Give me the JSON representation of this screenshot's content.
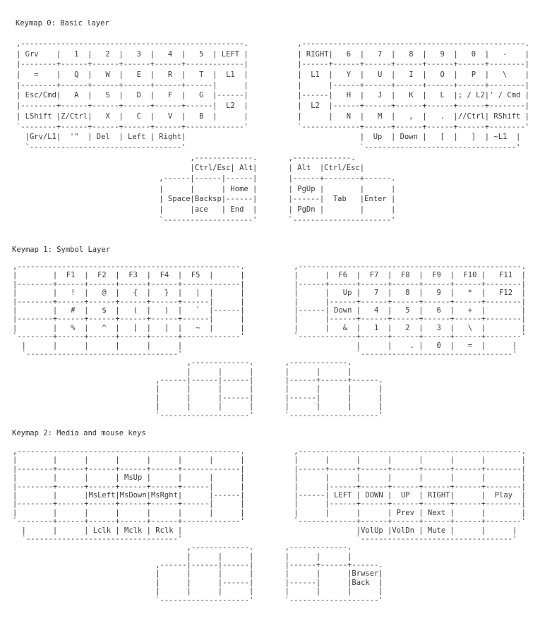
{
  "layers": [
    {
      "title": "Keymap 0: Basic layer",
      "lines": [
        ",--------------------------------------------------.           ,--------------------------------------------------.",
        "| Grv    |   1  |   2  |   3  |   4  |   5  | LEFT |           | RIGHT|   6  |   7  |   8  |   9  |   0  |   -    |",
        "|--------+------+------+------+------+-------------|           |------+------+------+------+------+------+--------|",
        "|   =    |   Q  |   W  |   E  |   R  |   T  |  L1  |           |  L1  |   Y  |   U  |   I  |   O  |   P  |   \\    |",
        "|--------+------+------+------+------+------|      |           |      |------+------+------+------+------+--------|",
        "| Esc/Cmd|   A  |   S  |   D  |   F  |   G  |------|           |------|   H  |   J  |   K  |   L  |; / L2|' / Cmd |",
        "|--------+------+------+------+------+------|  L2  |           |  L2  |------+------+------+------+------+--------|",
        "| LShift |Z/Ctrl|   X  |   C  |   V  |   B  |      |           |      |   N  |   M  |   ,  |   .  |//Ctrl| RShift |",
        "`--------+------+------+------+------+-------------'           `-------------+------+------+------+------+--------'",
        "  |Grv/L1|  '\"  | Del  | Left | Right|                                       |  Up  | Down |   [  |   ]  | ~L1  |",
        "  `----------------------------------'                                       `----------------------------------'",
        "                                       ,-------------.       ,-------------.",
        "                                       |Ctrl/Esc| Alt|       | Alt  |Ctrl/Esc|",
        "                                ,------|------|------|       |------+--------+------.",
        "                                |      |      | Home |       | PgUp |        |      |",
        "                                | Space|Backsp|------|       |------|  Tab   |Enter |",
        "                                |      |ace   | End  |       | PgDn |        |      |",
        "                                `--------------------'       `----------------------'"
      ]
    },
    {
      "title": "Keymap 1: Symbol Layer",
      "lines": [
        ",--------------------------------------------------.           ,--------------------------------------------------.",
        "|        |  F1  |  F2  |  F3  |  F4  |  F5  |      |           |      |  F6  |  F7  |  F8  |  F9  |  F10 |   F11  |",
        "|--------+------+------+------+------+-------------|           |------+------+------+------+------+------+--------|",
        "|        |   !  |   @  |   {  |   }  |   |  |      |           |      |   Up |   7  |   8  |   9  |   *  |   F12  |",
        "|--------+------+------+------+------+------|      |           |      |------+------+------+------+------+--------|",
        "|        |   #  |   $  |   (  |   )  |   `  |------|           |------| Down |   4  |   5  |   6  |   +  |        |",
        "|--------+------+------+------+------+------|      |           |      |------+------+------+------+------+--------|",
        "|        |   %  |   ^  |   [  |   ]  |   ~  |      |           |      |   &  |   1  |   2  |   3  |   \\  |        |",
        "`--------+------+------+------+------+-------------'           `-------------+------+------+------+------+--------'",
        "  |      |      |      |      |      |                                       |      |    . |   0  |   =  |      |",
        "  `----------------------------------'                                       `----------------------------------'",
        "                                       ,-------------.       ,-------------.",
        "                                       |      |      |       |      |      |",
        "                                ,------|------|------|       |------+------+------.",
        "                                |      |      |      |       |      |      |      |",
        "                                |      |      |------|       |------|      |      |",
        "                                |      |      |      |       |      |      |      |",
        "                                `--------------------'       `--------------------'"
      ]
    },
    {
      "title": "Keymap 2: Media and mouse keys",
      "lines": [
        ",--------------------------------------------------.           ,--------------------------------------------------.",
        "|        |      |      |      |      |      |      |           |      |      |      |      |      |      |        |",
        "|--------+------+------+------+------+-------------|           |------+------+------+------+------+------+--------|",
        "|        |      |      | MsUp |      |      |      |           |      |      |      |      |      |      |        |",
        "|--------+------+------+------+------+------|      |           |      |------+------+------+------+------+--------|",
        "|        |      |MsLeft|MsDown|MsRght|      |------|           |------| LEFT | DOWN |  UP  | RIGHT|      |  Play  |",
        "|--------+------+------+------+------+------|      |           |      |------+------+------+------+------+--------|",
        "|        |      |      |      |      |      |      |           |      |      |      | Prev | Next |      |        |",
        "`--------+------+------+------+------+-------------'           `-------------+------+------+------+------+--------'",
        "  |      |      | Lclk | Mclk | Rclk |                                       |VolUp |VolDn | Mute |      |      |",
        "  `----------------------------------'                                       `----------------------------------'",
        "                                       ,-------------.       ,-------------.",
        "                                       |      |      |       |      |      |",
        "                                ,------|------|------|       |------+------+------.",
        "                                |      |      |      |       |      |      |Brwser|",
        "                                |      |      |------|       |------|      |Back  |",
        "                                |      |      |      |       |      |      |      |",
        "                                `--------------------'       `--------------------'"
      ]
    }
  ]
}
